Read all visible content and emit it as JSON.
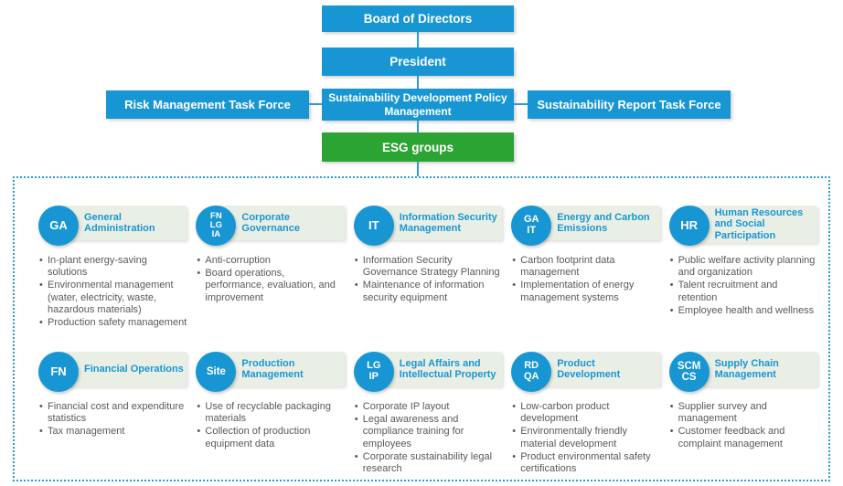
{
  "colors": {
    "box_blue": "#1896D4",
    "box_green": "#2CA434",
    "header_bar_bg": "#EAEFE5",
    "bullet_text": "#595959",
    "dotted_border": "#2E9BD6"
  },
  "hierarchy": {
    "board": "Board of Directors",
    "president": "President",
    "policy": "Sustainability Development Policy Management",
    "risk_task_force": "Risk Management Task Force",
    "report_task_force": "Sustainability Report Task Force",
    "esg": "ESG groups"
  },
  "groups": [
    {
      "abbr": "GA",
      "title": "General Administration",
      "bullets": [
        "In-plant energy-saving solutions",
        "Environmental management (water, electricity, waste, hazardous materials)",
        "Production safety management"
      ]
    },
    {
      "abbr": "FN\nLG\nIA",
      "title": "Corporate Governance",
      "bullets": [
        "Anti-corruption",
        "Board operations, performance, evaluation, and improvement"
      ]
    },
    {
      "abbr": "IT",
      "title": "Information Security Management",
      "bullets": [
        "Information Security Governance Strategy Planning",
        "Maintenance of information security equipment"
      ]
    },
    {
      "abbr": "GA\nIT",
      "title": "Energy and Carbon Emissions",
      "bullets": [
        "Carbon footprint data management",
        "Implementation of energy management systems"
      ]
    },
    {
      "abbr": "HR",
      "title": "Human Resources and Social Participation",
      "bullets": [
        "Public welfare activity planning and organization",
        "Talent recruitment and retention",
        "Employee health and wellness"
      ]
    },
    {
      "abbr": "FN",
      "title": "Financial Operations",
      "bullets": [
        "Financial cost and expenditure statistics",
        "Tax management"
      ]
    },
    {
      "abbr": "Site",
      "title": "Production Management",
      "bullets": [
        "Use of recyclable packaging materials",
        "Collection of production equipment data"
      ]
    },
    {
      "abbr": "LG\nIP",
      "title": "Legal Affairs and Intellectual Property",
      "bullets": [
        "Corporate IP layout",
        "Legal awareness and compliance training for employees",
        "Corporate sustainability legal research"
      ]
    },
    {
      "abbr": "RD\nQA",
      "title": "Product Development",
      "bullets": [
        "Low-carbon product development",
        "Environmentally friendly material development",
        "Product environmental safety certifications"
      ]
    },
    {
      "abbr": "SCM\nCS",
      "title": "Supply Chain Management",
      "bullets": [
        "Supplier survey and management",
        "Customer feedback and complaint management"
      ]
    }
  ]
}
